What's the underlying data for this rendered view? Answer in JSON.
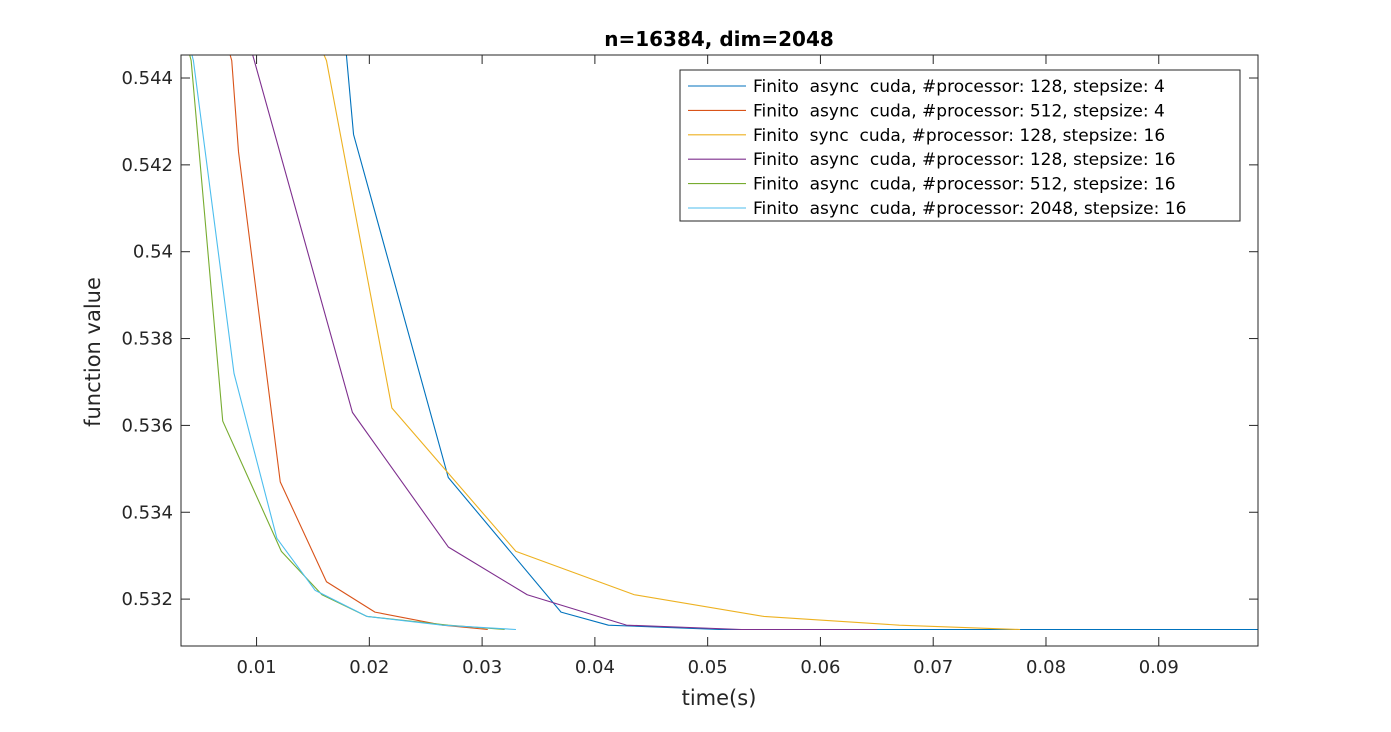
{
  "chart_data": {
    "type": "line",
    "title": "n=16384, dim=2048",
    "xlabel": "time(s)",
    "ylabel": "function value",
    "xlim": [
      0.0033,
      0.0988
    ],
    "ylim": [
      0.53092,
      0.54453
    ],
    "xticks": [
      0.01,
      0.02,
      0.03,
      0.04,
      0.05,
      0.06,
      0.07,
      0.08,
      0.09
    ],
    "xtick_labels": [
      "0.01",
      "0.02",
      "0.03",
      "0.04",
      "0.05",
      "0.06",
      "0.07",
      "0.08",
      "0.09"
    ],
    "yticks": [
      0.532,
      0.534,
      0.536,
      0.538,
      0.54,
      0.542,
      0.544
    ],
    "ytick_labels": [
      "0.532",
      "0.534",
      "0.536",
      "0.538",
      "0.54",
      "0.542",
      "0.544"
    ],
    "grid": false,
    "legend_position": "top-right",
    "series": [
      {
        "name": "Finito  async  cuda, #processor: 128, stepsize: 4",
        "color": "#0072BD",
        "x": [
          0.0177,
          0.0186,
          0.027,
          0.037,
          0.0412,
          0.051,
          0.064,
          0.0988
        ],
        "y": [
          0.5453,
          0.5427,
          0.5348,
          0.5317,
          0.5314,
          0.5313,
          0.5313,
          0.5313
        ]
      },
      {
        "name": "Finito  async  cuda, #processor: 512, stepsize: 4",
        "color": "#D95319",
        "x": [
          0.0068,
          0.0078,
          0.0084,
          0.0121,
          0.0162,
          0.0205,
          0.0265,
          0.0305
        ],
        "y": [
          0.5453,
          0.5444,
          0.5423,
          0.5347,
          0.5324,
          0.5317,
          0.5314,
          0.5313
        ]
      },
      {
        "name": "Finito  sync  cuda, #processor: 128, stepsize: 16",
        "color": "#EDB120",
        "x": [
          0.0147,
          0.0162,
          0.022,
          0.033,
          0.0435,
          0.055,
          0.067,
          0.0777
        ],
        "y": [
          0.5453,
          0.5444,
          0.5364,
          0.5331,
          0.5321,
          0.5316,
          0.5314,
          0.5313
        ]
      },
      {
        "name": "Finito  async  cuda, #processor: 128, stepsize: 16",
        "color": "#7E2F8E",
        "x": [
          0.0088,
          0.0098,
          0.0185,
          0.027,
          0.034,
          0.0428,
          0.053,
          0.065
        ],
        "y": [
          0.5453,
          0.5444,
          0.5363,
          0.5332,
          0.5321,
          0.5314,
          0.5313,
          0.5313
        ]
      },
      {
        "name": "Finito  async  cuda, #processor: 512, stepsize: 16",
        "color": "#77AC30",
        "x": [
          0.0033,
          0.0042,
          0.007,
          0.0122,
          0.0158,
          0.0198,
          0.027,
          0.032
        ],
        "y": [
          0.5453,
          0.5444,
          0.5361,
          0.5331,
          0.5321,
          0.5316,
          0.5314,
          0.5313
        ]
      },
      {
        "name": "Finito  async  cuda, #processor: 2048, stepsize: 16",
        "color": "#4DBEEE",
        "x": [
          0.0035,
          0.0044,
          0.008,
          0.0118,
          0.0152,
          0.0198,
          0.0265,
          0.033
        ],
        "y": [
          0.5453,
          0.5444,
          0.5372,
          0.5334,
          0.5322,
          0.5316,
          0.5314,
          0.5313
        ]
      }
    ]
  }
}
